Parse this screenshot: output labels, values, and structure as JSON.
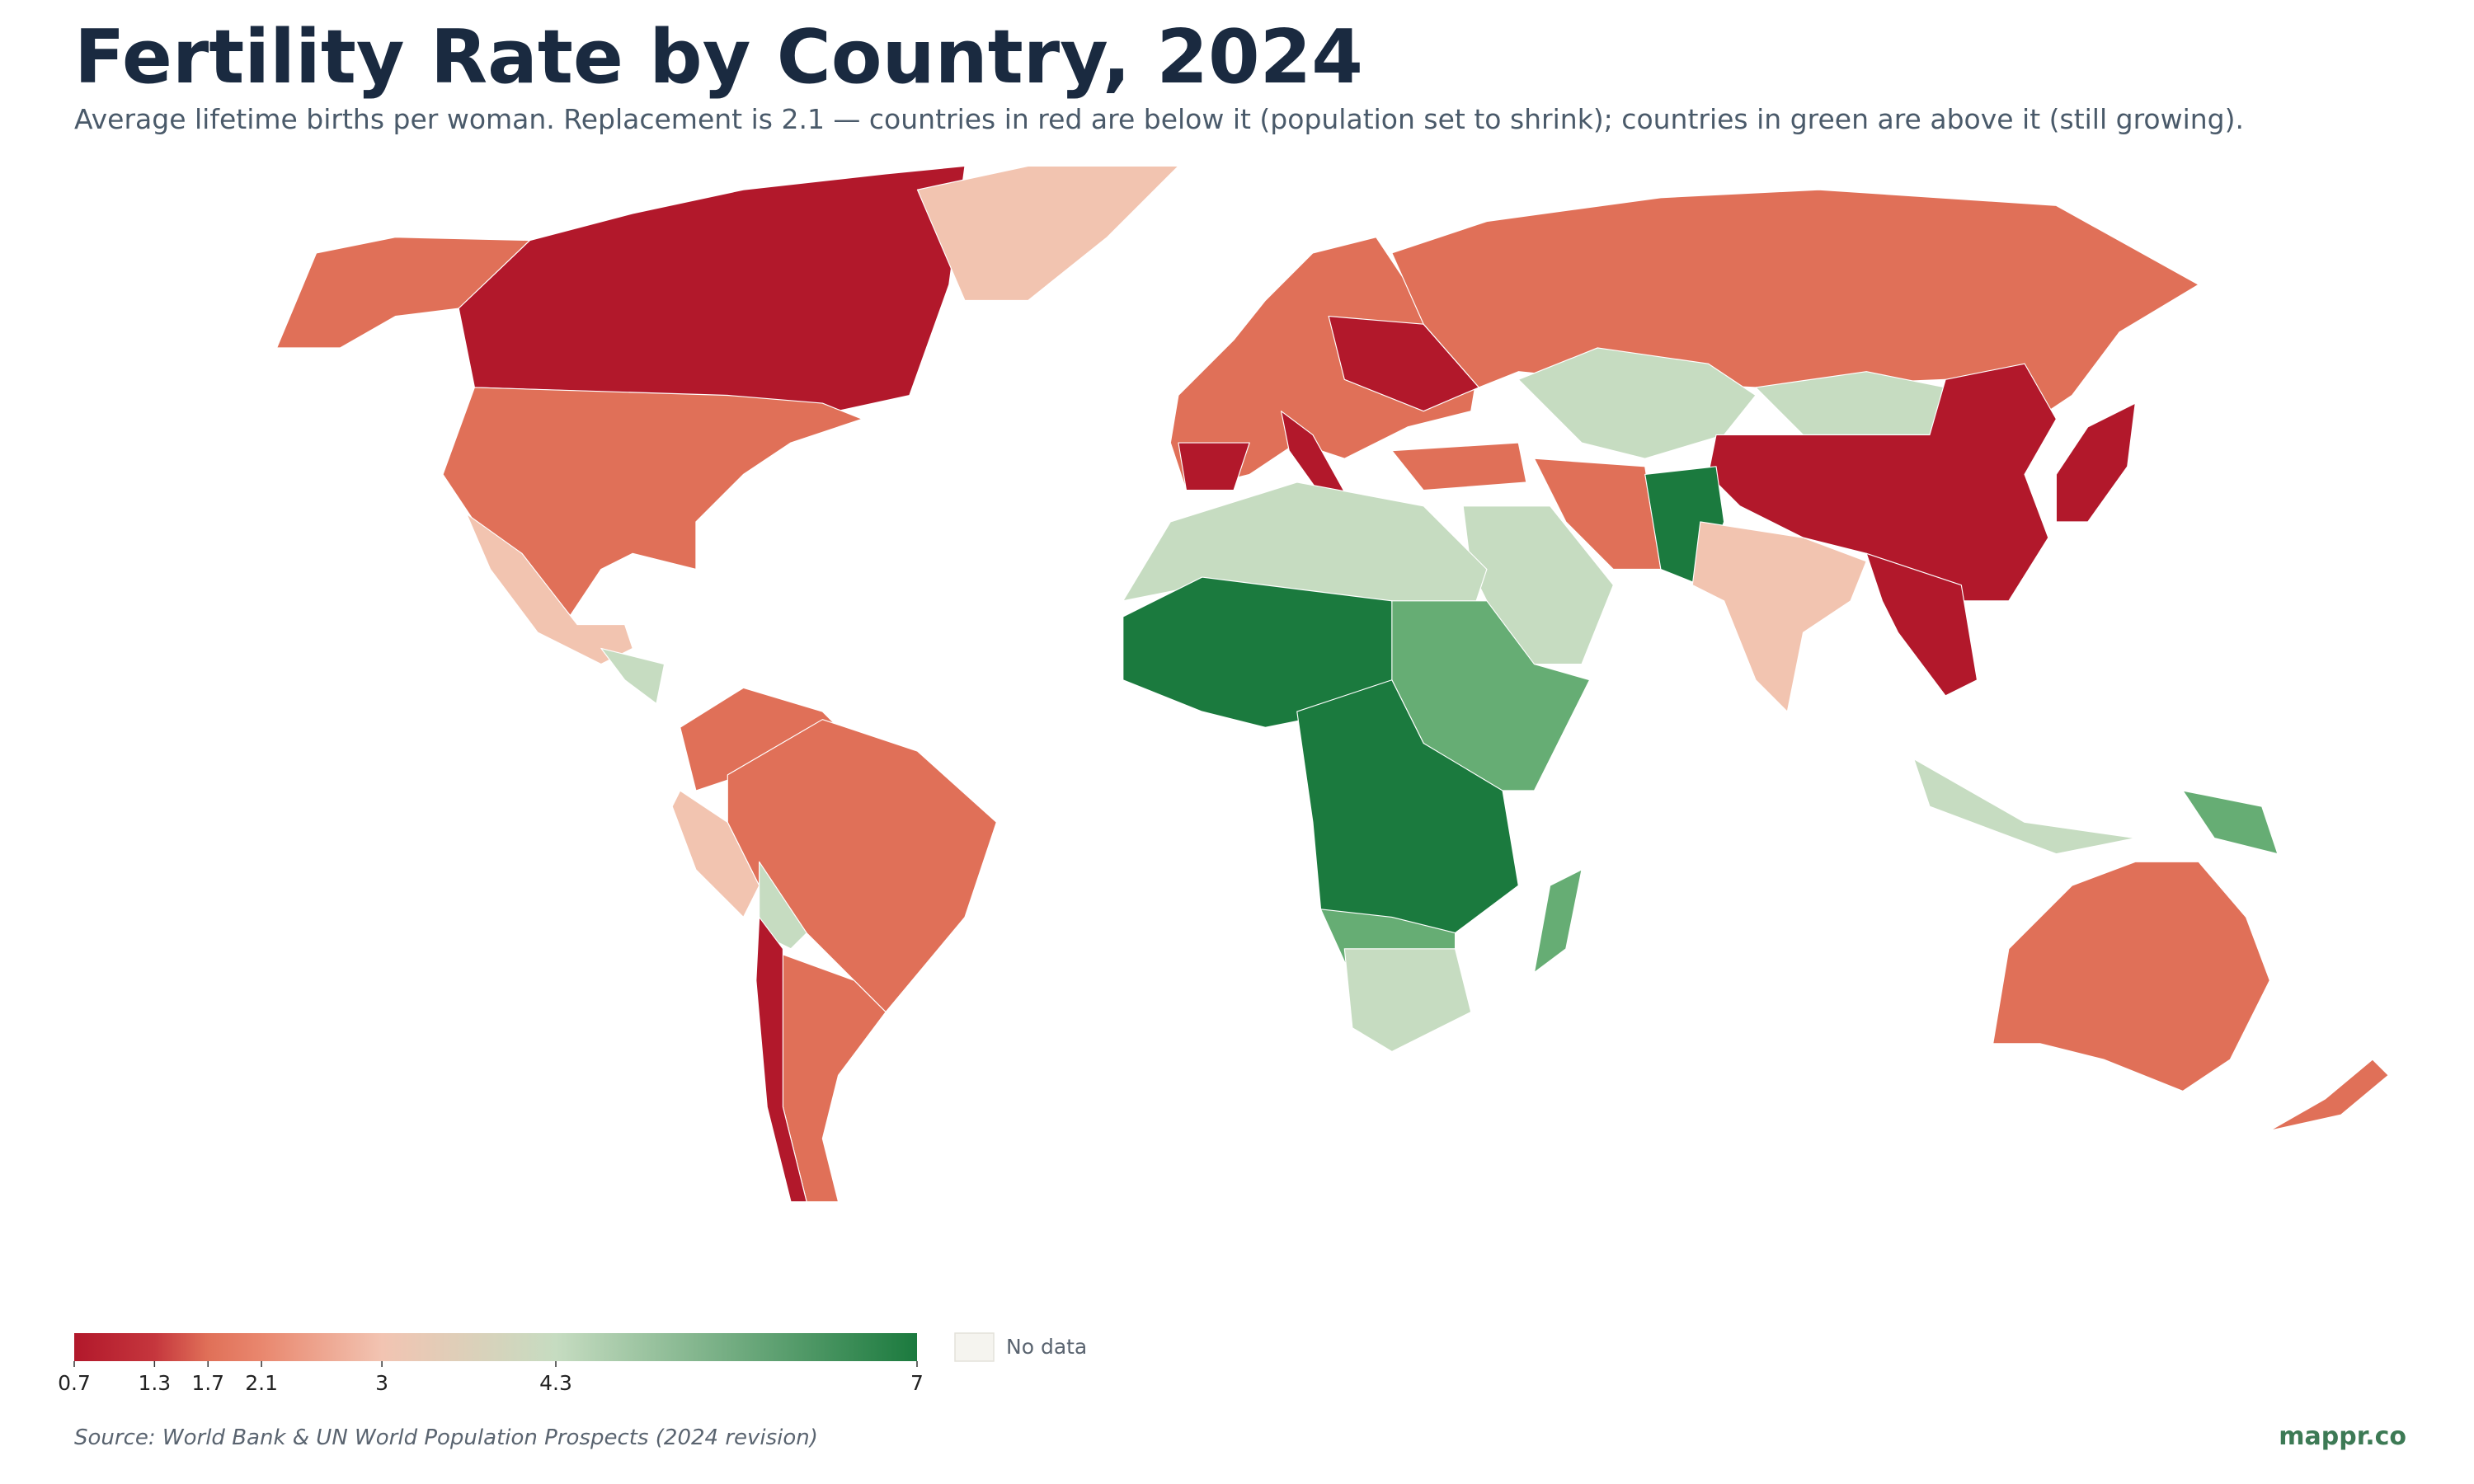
{
  "title": "Fertility Rate by Country, 2024",
  "subtitle": "Average lifetime births per woman. Replacement is 2.1 — countries in red are below it (population set to shrink); countries in green are above it (still growing).",
  "legend": {
    "range": [
      0.7,
      7
    ],
    "ticks": [
      0.7,
      1.3,
      1.7,
      2.1,
      3,
      4.3,
      7
    ],
    "colors": [
      "#b2182b",
      "#c5363d",
      "#e07058",
      "#e9876e",
      "#f2c4b2",
      "#c6dcc1",
      "#1b7a3e"
    ],
    "no_data_label": "No data",
    "no_data_color": "#f5f4ef"
  },
  "source": "Source: World Bank & UN World Population Prospects (2024 revision)",
  "credit": "mappr.co"
}
